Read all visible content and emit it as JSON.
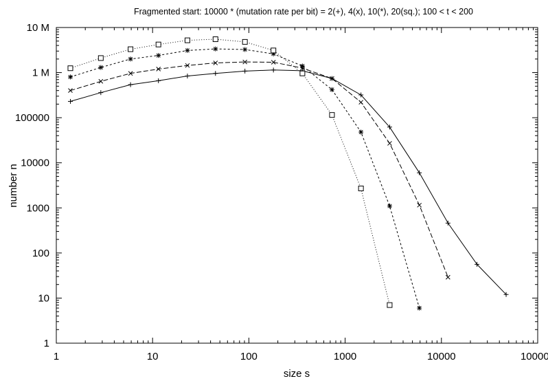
{
  "chart_data": {
    "type": "line",
    "title": "Fragmented start: 10000 * (mutation rate per bit) = 2(+), 4(x), 10(*), 20(sq.); 100 < t < 200",
    "xlabel": "size s",
    "ylabel": "number n",
    "x_scale": "log",
    "y_scale": "log",
    "xlim": [
      1,
      100000
    ],
    "ylim": [
      1,
      10000000
    ],
    "grid": false,
    "legend": "none",
    "x_ticks": [
      {
        "value": 1,
        "label": "1"
      },
      {
        "value": 10,
        "label": "10"
      },
      {
        "value": 100,
        "label": "100"
      },
      {
        "value": 1000,
        "label": "1000"
      },
      {
        "value": 10000,
        "label": "10000"
      },
      {
        "value": 100000,
        "label": "100000"
      }
    ],
    "y_ticks": [
      {
        "value": 1,
        "label": "1"
      },
      {
        "value": 10,
        "label": "10"
      },
      {
        "value": 100,
        "label": "100"
      },
      {
        "value": 1000,
        "label": "1000"
      },
      {
        "value": 10000,
        "label": "10000"
      },
      {
        "value": 100000,
        "label": "100000"
      },
      {
        "value": 1000000,
        "label": "1 M"
      },
      {
        "value": 10000000,
        "label": "10 M"
      }
    ],
    "series": [
      {
        "marker": "plus",
        "dash": "solid",
        "x": [
          1.4,
          2.9,
          5.9,
          11.5,
          23,
          45,
          91,
          180,
          360,
          730,
          1460,
          2900,
          5900,
          11700,
          23400,
          47000
        ],
        "y": [
          230000,
          360000,
          540000,
          660000,
          840000,
          960000,
          1080000,
          1140000,
          1100000,
          740000,
          320000,
          62000,
          6000,
          460,
          56,
          12
        ]
      },
      {
        "marker": "cross",
        "dash": "dashed",
        "x": [
          1.4,
          2.9,
          5.9,
          11.5,
          23,
          45,
          91,
          180,
          360,
          730,
          1460,
          2900,
          5900,
          11700
        ],
        "y": [
          400000,
          640000,
          960000,
          1200000,
          1440000,
          1640000,
          1720000,
          1700000,
          1260000,
          740000,
          220000,
          27000,
          1150,
          29
        ]
      },
      {
        "marker": "asterisk",
        "dash": "short-dashed",
        "x": [
          1.4,
          2.9,
          5.9,
          11.5,
          23,
          45,
          91,
          180,
          360,
          730,
          1460,
          2900,
          5900
        ],
        "y": [
          800000,
          1300000,
          2000000,
          2400000,
          3100000,
          3350000,
          3250000,
          2600000,
          1400000,
          420000,
          48000,
          1100,
          6
        ]
      },
      {
        "marker": "square",
        "dash": "dotted",
        "x": [
          1.4,
          2.9,
          5.9,
          11.5,
          23,
          45,
          91,
          180,
          360,
          730,
          1460,
          2900
        ],
        "y": [
          1250000,
          2100000,
          3300000,
          4200000,
          5200000,
          5500000,
          4800000,
          3100000,
          960000,
          115000,
          2700,
          7
        ]
      }
    ]
  }
}
